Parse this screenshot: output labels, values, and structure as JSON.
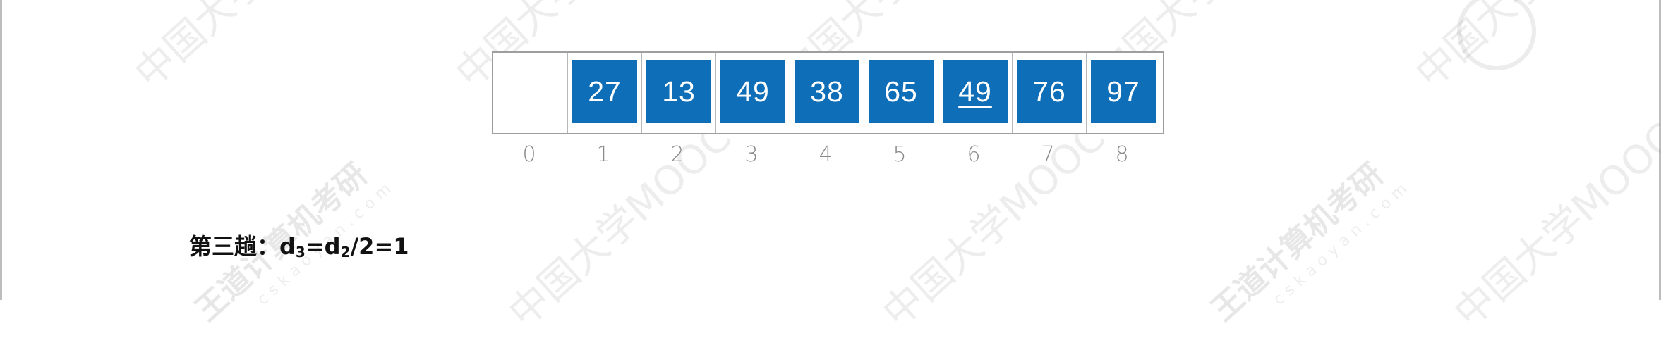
{
  "array": {
    "cells": [
      {
        "index": "0",
        "value": ""
      },
      {
        "index": "1",
        "value": "27"
      },
      {
        "index": "2",
        "value": "13"
      },
      {
        "index": "3",
        "value": "49"
      },
      {
        "index": "4",
        "value": "38"
      },
      {
        "index": "5",
        "value": "65"
      },
      {
        "index": "6",
        "value": "49",
        "underlined": true
      },
      {
        "index": "7",
        "value": "76"
      },
      {
        "index": "8",
        "value": "97"
      }
    ],
    "block_color": "#0e6eb8",
    "index_color": "#8a8a8a"
  },
  "caption": {
    "prefix": "第三趟：",
    "d": "d",
    "sub3": "3",
    "eq": "=d",
    "sub2": "2",
    "tail": "/2=1"
  },
  "watermarks": {
    "wangdao": "王道计算机考研",
    "site": "cskaoyan.com",
    "mooc": "中国大学MOOC"
  }
}
